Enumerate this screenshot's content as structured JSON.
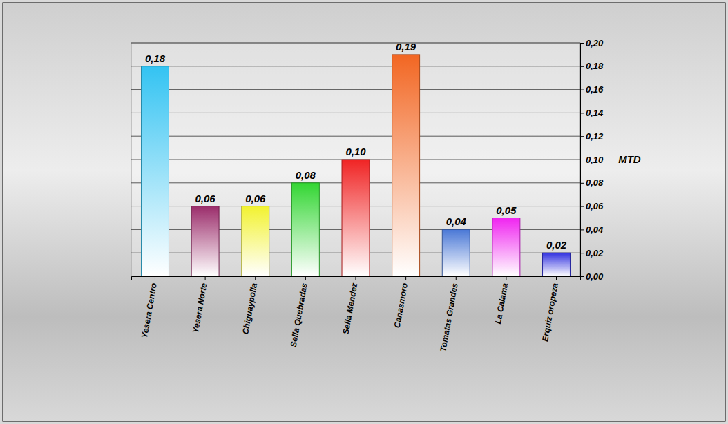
{
  "chart_data": {
    "type": "bar",
    "y_label": "MTD",
    "categories": [
      "Yesera Centro",
      "Yesera Norte",
      "Chiguaypolla",
      "Sella Quebradas",
      "Sella Mendez",
      "Canasmoro",
      "Tomatas Grandes",
      "La Calama",
      "Erquiz oropeza"
    ],
    "values": [
      0.18,
      0.06,
      0.06,
      0.08,
      0.1,
      0.19,
      0.04,
      0.05,
      0.02
    ],
    "value_labels": [
      "0,18",
      "0,06",
      "0,06",
      "0,08",
      "0,10",
      "0,19",
      "0,04",
      "0,05",
      "0,02"
    ],
    "colors": [
      "#33c3f2",
      "#9b2d6b",
      "#f2f230",
      "#33d633",
      "#f02424",
      "#f26622",
      "#4a78d6",
      "#f024f0",
      "#3333e0"
    ],
    "ylim": [
      0,
      0.2
    ],
    "yticks": [
      {
        "value": 0,
        "label": "0,00"
      },
      {
        "value": 0.02,
        "label": "0,02"
      },
      {
        "value": 0.04,
        "label": "0,04"
      },
      {
        "value": 0.06,
        "label": "0,06"
      },
      {
        "value": 0.08,
        "label": "0,08"
      },
      {
        "value": 0.1,
        "label": "0,10"
      },
      {
        "value": 0.12,
        "label": "0,12"
      },
      {
        "value": 0.14,
        "label": "0,14"
      },
      {
        "value": 0.16,
        "label": "0,16"
      },
      {
        "value": 0.18,
        "label": "0,18"
      },
      {
        "value": 0.2,
        "label": "0,20"
      }
    ],
    "grid": true,
    "data_labels": true
  }
}
